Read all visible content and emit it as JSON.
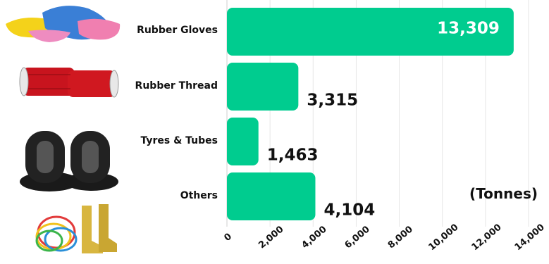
{
  "chart_data": {
    "type": "bar",
    "orientation": "horizontal",
    "categories": [
      "Rubber Gloves",
      "Rubber Thread",
      "Tyres & Tubes",
      "Others"
    ],
    "values": [
      13309,
      3315,
      1463,
      4104
    ],
    "value_labels": [
      "13,309",
      "3,315",
      "1,463",
      "4,104"
    ],
    "xlim": [
      0,
      14000
    ],
    "xticks": [
      0,
      2000,
      4000,
      6000,
      8000,
      10000,
      12000,
      14000
    ],
    "xtick_labels": [
      "0",
      "2,000",
      "4,000",
      "6,000",
      "8,000",
      "10,000",
      "12,000",
      "14,000"
    ],
    "unit_label": "(Tonnes)",
    "grid": true,
    "bar_color": "#00cc8f"
  },
  "icons": [
    "rubber-gloves-icon",
    "rubber-thread-spools-icon",
    "tyres-icon",
    "rubber-bands-and-boots-icon"
  ]
}
